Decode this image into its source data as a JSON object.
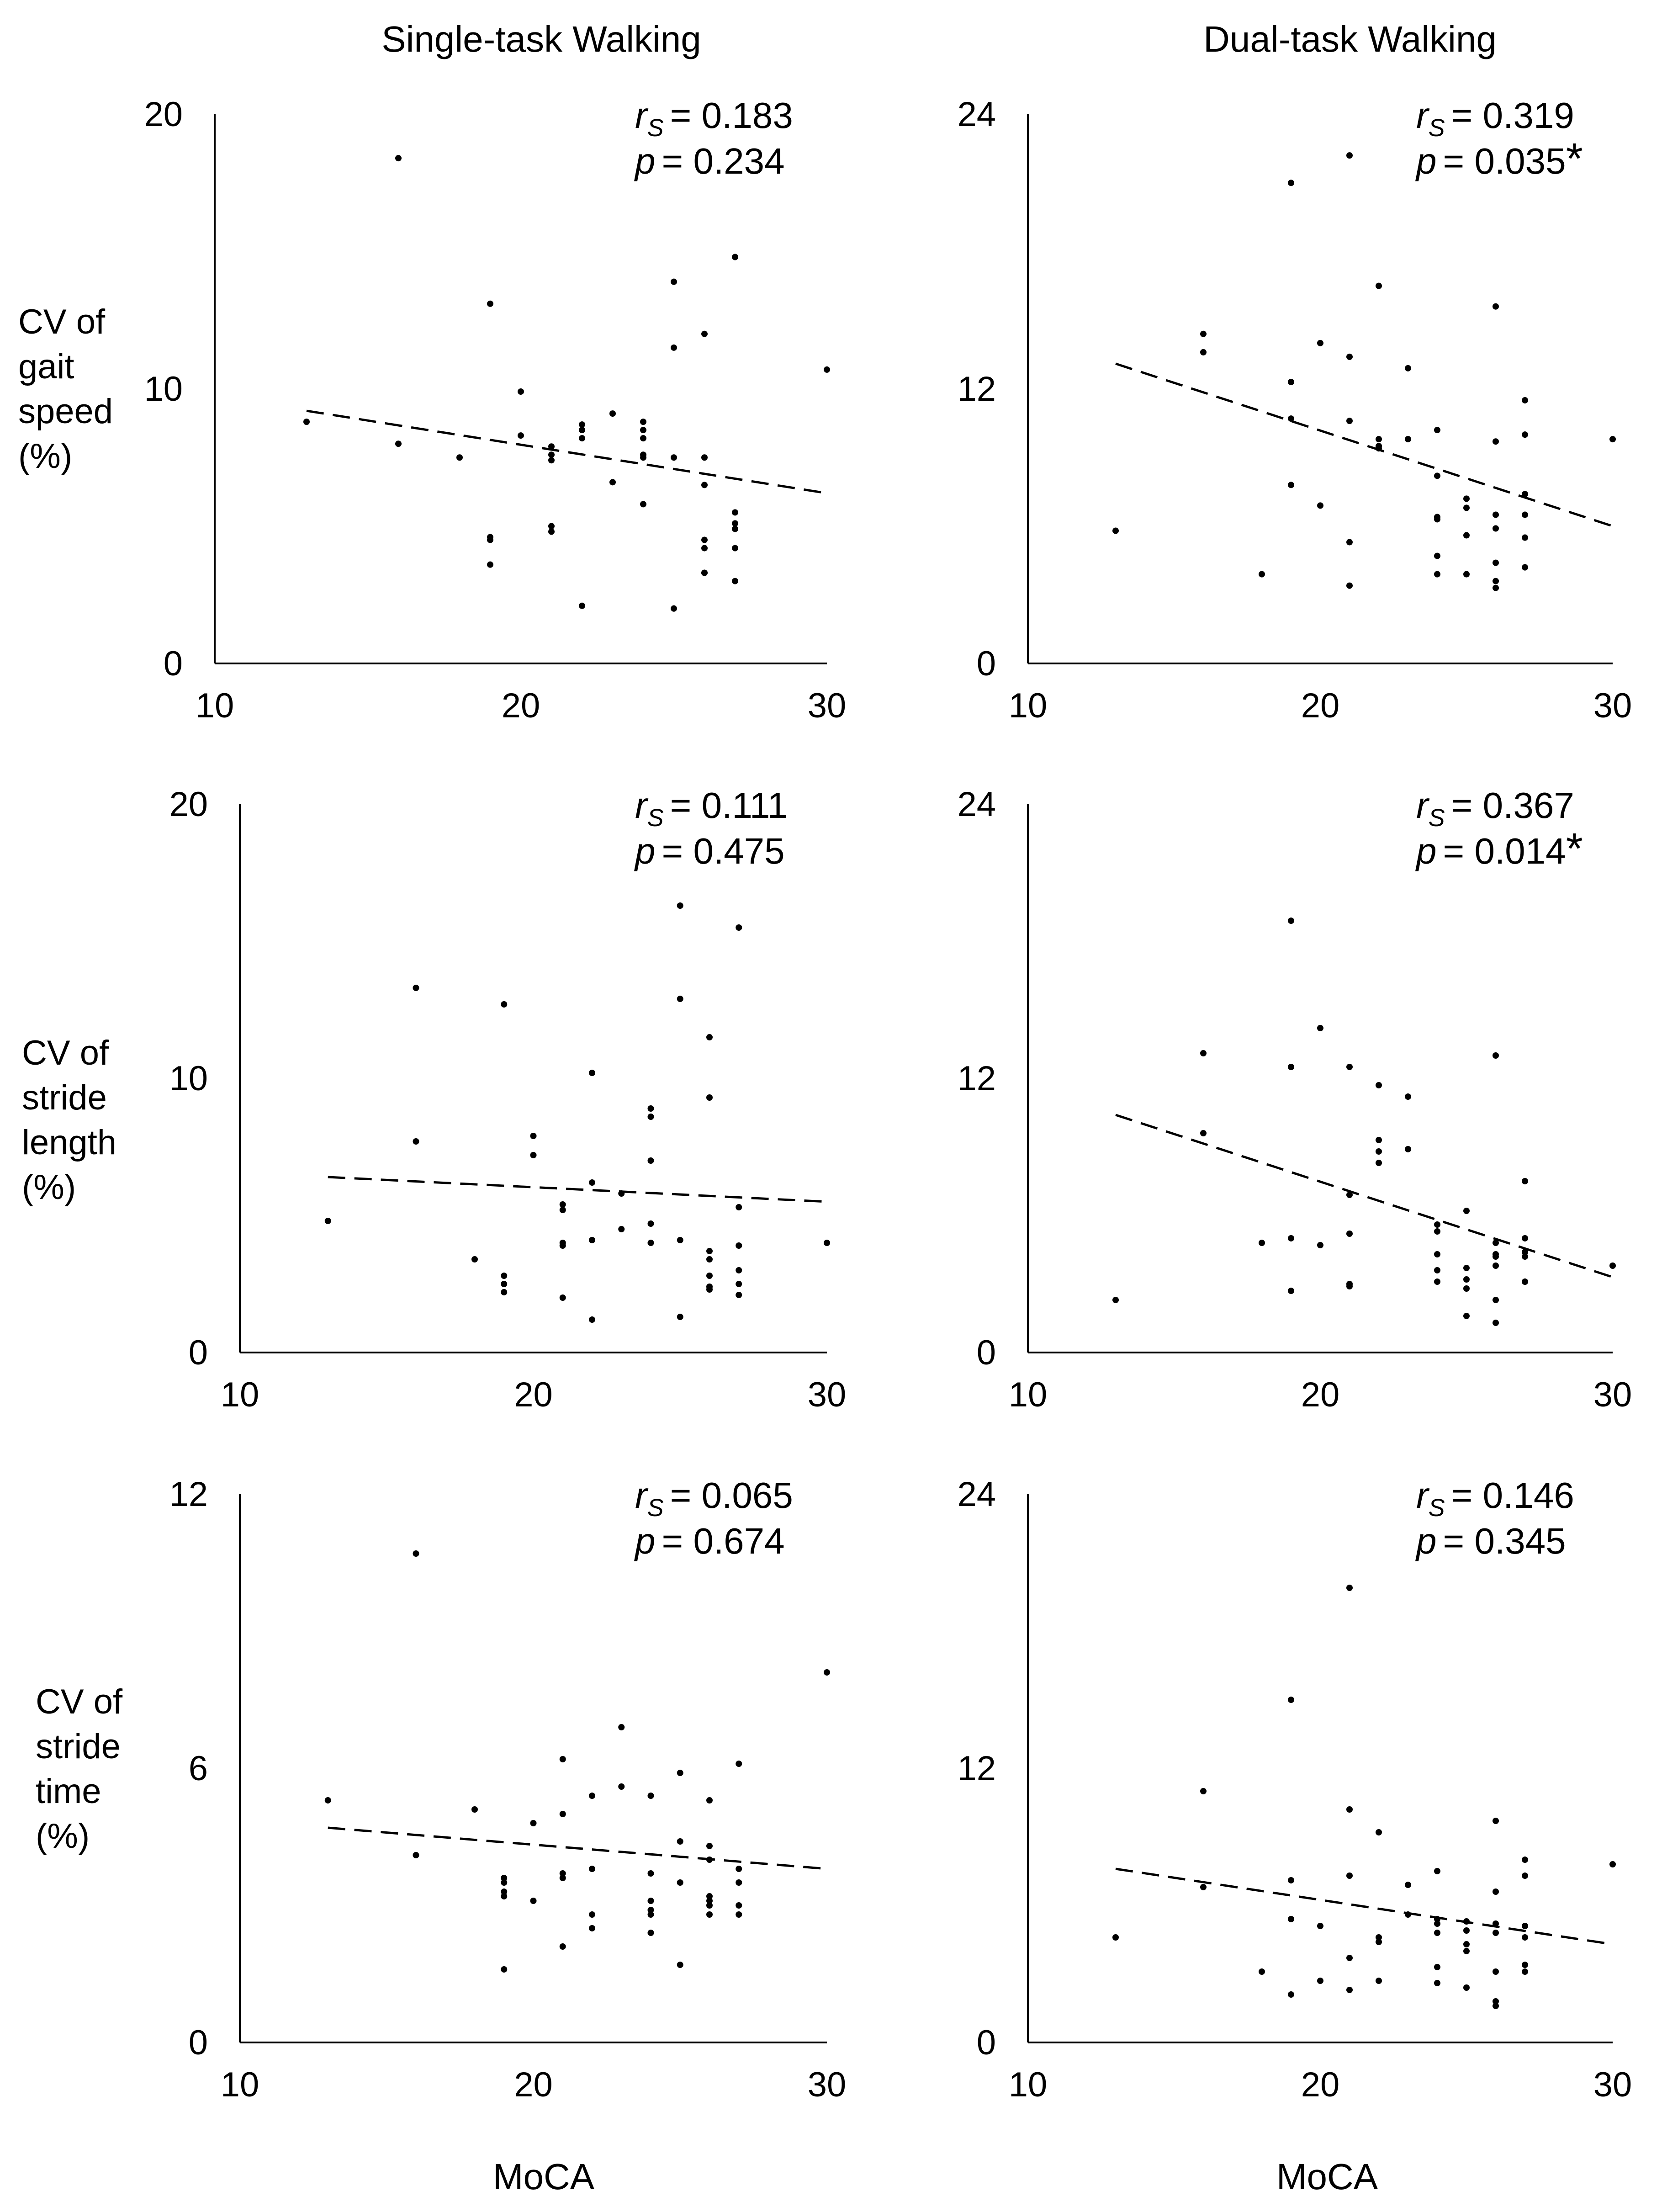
{
  "figure": {
    "column_titles": [
      "Single-task Walking",
      "Dual-task Walking"
    ],
    "row_labels": [
      [
        "CV of",
        "gait",
        "speed",
        "(%)"
      ],
      [
        "CV of",
        "stride",
        "length",
        "(%)"
      ],
      [
        "CV of",
        "stride",
        "time",
        "(%)"
      ]
    ],
    "x_label": "MoCA"
  },
  "chart_data": [
    {
      "type": "scatter",
      "panel": "CV of gait speed - Single-task Walking",
      "title": "Single-task Walking",
      "xlabel": "MoCA",
      "ylabel": "CV of gait speed (%)",
      "xlim": [
        10,
        30
      ],
      "ylim": [
        0,
        20
      ],
      "xticks": [
        10,
        20,
        30
      ],
      "yticks": [
        0,
        10,
        20
      ],
      "stats": {
        "r_label": "r",
        "r_sub": "S",
        "r_value": "= 0.183",
        "p_label": "p",
        "p_value": "= 0.234",
        "significant": ""
      },
      "trendline": {
        "style": "dashed",
        "x": [
          13,
          30
        ],
        "y": [
          9.2,
          6.2
        ]
      },
      "x": [
        13,
        16,
        16,
        18,
        19,
        19,
        19,
        19,
        20,
        20,
        21,
        21,
        21,
        21,
        21,
        22,
        22,
        22,
        22,
        23,
        23,
        24,
        24,
        24,
        24,
        24,
        24,
        25,
        25,
        25,
        25,
        26,
        26,
        26,
        26,
        26,
        26,
        26,
        27,
        27,
        27,
        27,
        27,
        27,
        30
      ],
      "y": [
        8.8,
        18.4,
        8,
        7.5,
        13.1,
        4.6,
        4.5,
        3.6,
        9.9,
        8.3,
        7.9,
        7.6,
        7.4,
        5,
        4.8,
        8.7,
        8.5,
        8.2,
        2.1,
        9.1,
        6.6,
        8.8,
        8.5,
        8.2,
        7.6,
        7.5,
        5.8,
        13.9,
        11.5,
        7.5,
        2,
        12,
        7.5,
        6.5,
        4.5,
        4.2,
        3.3,
        3.3,
        14.8,
        5.5,
        5.1,
        4.9,
        4.2,
        3,
        10.7
      ]
    },
    {
      "type": "scatter",
      "panel": "CV of gait speed - Dual-task Walking",
      "title": "Dual-task Walking",
      "xlabel": "MoCA",
      "ylabel": "CV of gait speed (%)",
      "xlim": [
        10,
        30
      ],
      "ylim": [
        0,
        24
      ],
      "xticks": [
        10,
        20,
        30
      ],
      "yticks": [
        0,
        12,
        24
      ],
      "stats": {
        "r_label": "r",
        "r_sub": "S",
        "r_value": "= 0.319",
        "p_label": "p",
        "p_value": "= 0.035",
        "significant": "*"
      },
      "trendline": {
        "style": "dashed",
        "x": [
          13,
          30
        ],
        "y": [
          13.1,
          6
        ]
      },
      "x": [
        13,
        16,
        16,
        18,
        19,
        19,
        19,
        19,
        20,
        20,
        21,
        21,
        21,
        21,
        21,
        22,
        22,
        22,
        22,
        23,
        23,
        24,
        24,
        24,
        24,
        24,
        24,
        25,
        25,
        25,
        25,
        26,
        26,
        26,
        26,
        26,
        26,
        26,
        27,
        27,
        27,
        27,
        27,
        27,
        30
      ],
      "y": [
        5.8,
        14.4,
        13.6,
        3.9,
        21,
        12.3,
        10.7,
        7.8,
        14,
        6.9,
        22.2,
        13.4,
        10.6,
        5.3,
        3.4,
        16.5,
        9.8,
        9.4,
        9.5,
        12.9,
        9.8,
        10.2,
        8.2,
        6.3,
        4.7,
        3.9,
        6.4,
        7.2,
        5.6,
        3.9,
        6.8,
        15.6,
        9.7,
        5.9,
        4.4,
        3.6,
        3.3,
        6.5,
        11.5,
        10,
        7.4,
        6.5,
        5.5,
        4.2,
        9.8
      ]
    },
    {
      "type": "scatter",
      "panel": "CV of stride length - Single-task Walking",
      "title": "Single-task Walking",
      "xlabel": "MoCA",
      "ylabel": "CV of stride length (%)",
      "xlim": [
        10,
        30
      ],
      "ylim": [
        0,
        20
      ],
      "xticks": [
        10,
        20,
        30
      ],
      "yticks": [
        0,
        10,
        20
      ],
      "stats": {
        "r_label": "r",
        "r_sub": "S",
        "r_value": "= 0.111",
        "p_label": "p",
        "p_value": "= 0.475",
        "significant": ""
      },
      "trendline": {
        "style": "dashed",
        "x": [
          13,
          30
        ],
        "y": [
          6.4,
          5.5
        ]
      },
      "x": [
        13,
        16,
        16,
        18,
        19,
        19,
        19,
        19,
        20,
        20,
        21,
        21,
        21,
        21,
        21,
        22,
        22,
        22,
        22,
        23,
        23,
        24,
        24,
        24,
        24,
        24,
        25,
        25,
        25,
        25,
        26,
        26,
        26,
        26,
        26,
        26,
        26,
        27,
        27,
        27,
        27,
        27,
        27,
        30
      ],
      "y": [
        4.8,
        13.3,
        7.7,
        3.4,
        12.7,
        2.8,
        2.5,
        2.2,
        7.9,
        7.2,
        5.4,
        5.2,
        4,
        3.9,
        2,
        10.2,
        6.2,
        4.1,
        1.2,
        5.8,
        4.5,
        8.9,
        8.6,
        7,
        4.7,
        4,
        16.3,
        12.9,
        4.1,
        1.3,
        11.5,
        9.3,
        3.7,
        3.4,
        2.8,
        2.4,
        2.3,
        15.5,
        5.3,
        3.9,
        3,
        2.5,
        2.1,
        4
      ]
    },
    {
      "type": "scatter",
      "panel": "CV of stride length - Dual-task Walking",
      "title": "Dual-task Walking",
      "xlabel": "MoCA",
      "ylabel": "CV of stride length (%)",
      "xlim": [
        10,
        30
      ],
      "ylim": [
        0,
        24
      ],
      "xticks": [
        10,
        20,
        30
      ],
      "yticks": [
        0,
        12,
        24
      ],
      "stats": {
        "r_label": "r",
        "r_sub": "S",
        "r_value": "= 0.367",
        "p_label": "p",
        "p_value": "= 0.014",
        "significant": "*"
      },
      "trendline": {
        "style": "dashed",
        "x": [
          13,
          30
        ],
        "y": [
          10.4,
          3.3
        ]
      },
      "x": [
        13,
        16,
        16,
        18,
        19,
        19,
        19,
        19,
        20,
        20,
        21,
        21,
        21,
        21,
        21,
        22,
        22,
        22,
        22,
        23,
        23,
        24,
        24,
        24,
        24,
        24,
        25,
        25,
        25,
        25,
        25,
        26,
        26,
        26,
        26,
        26,
        26,
        26,
        27,
        27,
        27,
        27,
        27,
        27,
        30
      ],
      "y": [
        2.3,
        13.1,
        9.6,
        4.8,
        18.9,
        12.5,
        5,
        2.7,
        14.2,
        4.7,
        12.5,
        6.9,
        5.2,
        3,
        2.9,
        11.7,
        9.3,
        8.8,
        8.3,
        11.2,
        8.9,
        5.6,
        5.3,
        4.3,
        3.6,
        3.1,
        6.2,
        3.7,
        2.8,
        1.6,
        3.2,
        13,
        4.8,
        4.3,
        4.2,
        3.8,
        2.3,
        1.3,
        7.5,
        5,
        4.4,
        4.2,
        3.1,
        3.1,
        3.8
      ]
    },
    {
      "type": "scatter",
      "panel": "CV of stride time - Single-task Walking",
      "title": "Single-task Walking",
      "xlabel": "MoCA",
      "ylabel": "CV of stride time (%)",
      "xlim": [
        10,
        30
      ],
      "ylim": [
        0,
        12
      ],
      "xticks": [
        10,
        20,
        30
      ],
      "yticks": [
        0,
        6,
        12
      ],
      "stats": {
        "r_label": "r",
        "r_sub": "S",
        "r_value": "= 0.065",
        "p_label": "p",
        "p_value": "= 0.674",
        "significant": ""
      },
      "trendline": {
        "style": "dashed",
        "x": [
          13,
          30
        ],
        "y": [
          4.7,
          3.8
        ]
      },
      "x": [
        13,
        16,
        16,
        18,
        19,
        19,
        19,
        19,
        19,
        20,
        20,
        21,
        21,
        21,
        21,
        21,
        22,
        22,
        22,
        22,
        23,
        23,
        24,
        24,
        24,
        24,
        24,
        24,
        25,
        25,
        25,
        25,
        26,
        26,
        26,
        26,
        26,
        26,
        26,
        27,
        27,
        27,
        27,
        27,
        30
      ],
      "y": [
        5.3,
        10.7,
        4.1,
        5.1,
        3.6,
        3.5,
        3.3,
        3.2,
        1.6,
        4.8,
        3.1,
        6.2,
        5,
        3.7,
        3.6,
        2.1,
        5.4,
        3.8,
        2.8,
        2.5,
        6.9,
        5.6,
        5.4,
        3.7,
        3.1,
        2.9,
        2.8,
        2.4,
        5.9,
        4.4,
        3.5,
        1.7,
        5.3,
        4.3,
        4,
        3.2,
        3.1,
        3,
        2.8,
        6.1,
        3.8,
        3.5,
        3,
        2.8,
        8.1
      ]
    },
    {
      "type": "scatter",
      "panel": "CV of stride time - Dual-task Walking",
      "title": "Dual-task Walking",
      "xlabel": "MoCA",
      "ylabel": "CV of stride time (%)",
      "xlim": [
        10,
        30
      ],
      "ylim": [
        0,
        24
      ],
      "xticks": [
        10,
        20,
        30
      ],
      "yticks": [
        0,
        12,
        24
      ],
      "stats": {
        "r_label": "r",
        "r_sub": "S",
        "r_value": "= 0.146",
        "p_label": "p",
        "p_value": "= 0.345",
        "significant": ""
      },
      "trendline": {
        "style": "dashed",
        "x": [
          13,
          30
        ],
        "y": [
          7.6,
          4.3
        ]
      },
      "x": [
        13,
        16,
        16,
        18,
        19,
        19,
        19,
        19,
        20,
        20,
        21,
        21,
        21,
        21,
        21,
        22,
        22,
        22,
        22,
        23,
        23,
        24,
        24,
        24,
        24,
        24,
        24,
        25,
        25,
        25,
        25,
        25,
        26,
        26,
        26,
        26,
        26,
        26,
        26,
        27,
        27,
        27,
        27,
        27,
        27,
        30
      ],
      "y": [
        4.6,
        11,
        6.8,
        3.1,
        15,
        7.1,
        5.4,
        2.1,
        5.1,
        2.7,
        19.9,
        10.2,
        7.3,
        3.7,
        2.3,
        9.2,
        4.6,
        4.4,
        2.7,
        6.9,
        5.6,
        7.5,
        5.4,
        4.8,
        3.3,
        2.6,
        5.2,
        5.3,
        4.9,
        4.3,
        4,
        2.4,
        9.7,
        6.6,
        4.8,
        3.1,
        1.8,
        1.6,
        5.2,
        8,
        7.3,
        5.1,
        4.6,
        3.4,
        3.1,
        7.8
      ]
    }
  ]
}
